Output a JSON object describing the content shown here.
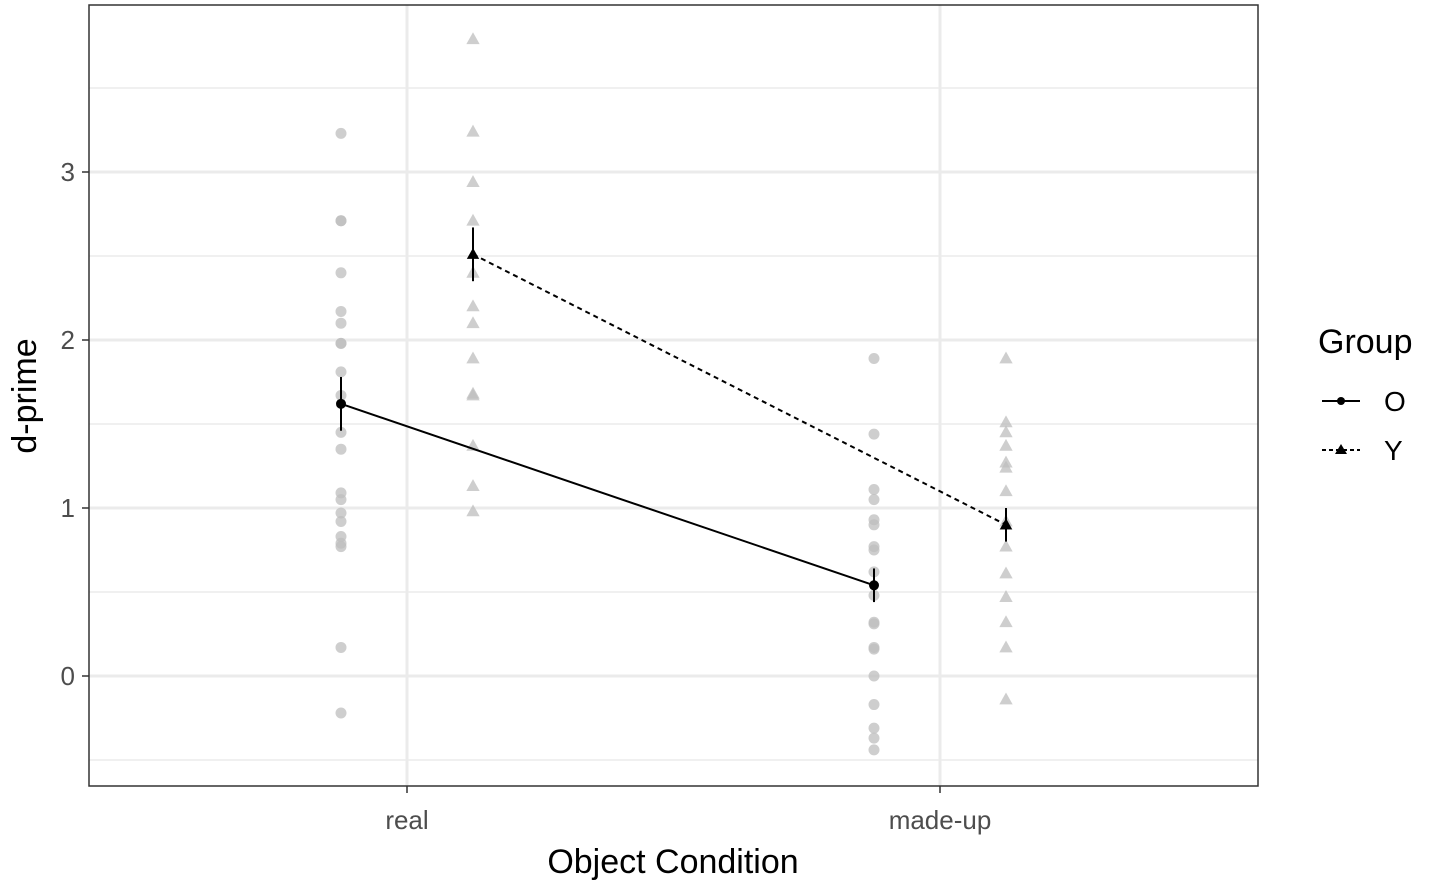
{
  "chart_data": {
    "type": "scatter",
    "xlabel": "Object Condition",
    "ylabel": "d-prime",
    "categories": [
      "real",
      "made-up"
    ],
    "yticks": [
      0,
      1,
      2,
      3
    ],
    "ylim": [
      -0.65,
      3.9
    ],
    "grid": true,
    "legend": {
      "title": "Group",
      "placement": "right",
      "entries": [
        "O",
        "Y"
      ]
    },
    "colors": {
      "points": "#bdbdbd",
      "lines": "#000000",
      "grid": "#ebebeb",
      "panel_border": "#333333"
    },
    "series": [
      {
        "name": "O",
        "marker": "circle",
        "linestyle": "solid",
        "means": [
          1.62,
          0.54
        ],
        "errors": [
          0.16,
          0.1
        ],
        "points": [
          [
            3.23,
            2.71,
            2.71,
            2.4,
            2.17,
            2.1,
            1.98,
            1.98,
            1.81,
            1.67,
            1.45,
            1.35,
            1.09,
            1.05,
            0.97,
            0.92,
            0.83,
            0.79,
            0.77,
            0.17,
            -0.22
          ],
          [
            1.89,
            1.44,
            1.11,
            1.05,
            0.93,
            0.9,
            0.77,
            0.75,
            0.62,
            0.48,
            0.32,
            0.31,
            0.17,
            0.16,
            0.0,
            -0.17,
            -0.31,
            -0.37,
            -0.44
          ]
        ]
      },
      {
        "name": "Y",
        "marker": "triangle",
        "linestyle": "dashed",
        "means": [
          2.51,
          0.9
        ],
        "errors": [
          0.16,
          0.1
        ],
        "points": [
          [
            3.79,
            3.24,
            2.94,
            2.71,
            2.4,
            2.2,
            2.1,
            1.89,
            1.68,
            1.67,
            1.37,
            1.13,
            0.98
          ],
          [
            1.89,
            1.51,
            1.45,
            1.37,
            1.27,
            1.24,
            1.1,
            0.92,
            0.9,
            0.77,
            0.61,
            0.47,
            0.32,
            0.17,
            -0.14
          ]
        ]
      }
    ]
  }
}
